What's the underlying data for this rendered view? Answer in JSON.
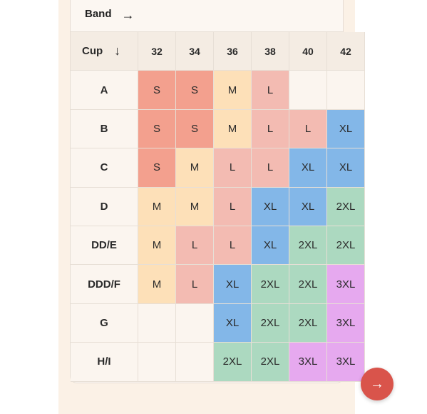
{
  "band": {
    "label": "Band",
    "arrow_icon": "arrow-right-icon"
  },
  "cup": {
    "label": "Cup",
    "arrow_icon": "arrow-down-icon"
  },
  "bands": [
    "32",
    "34",
    "36",
    "38",
    "40",
    "42"
  ],
  "rows": [
    {
      "cup": "A",
      "sizes": [
        "S",
        "S",
        "M",
        "L",
        "",
        ""
      ]
    },
    {
      "cup": "B",
      "sizes": [
        "S",
        "S",
        "M",
        "L",
        "L",
        "XL"
      ]
    },
    {
      "cup": "C",
      "sizes": [
        "S",
        "M",
        "L",
        "L",
        "XL",
        "XL"
      ]
    },
    {
      "cup": "D",
      "sizes": [
        "M",
        "M",
        "L",
        "XL",
        "XL",
        "2XL"
      ]
    },
    {
      "cup": "DD/E",
      "sizes": [
        "M",
        "L",
        "L",
        "XL",
        "2XL",
        "2XL"
      ]
    },
    {
      "cup": "DDD/F",
      "sizes": [
        "M",
        "L",
        "XL",
        "2XL",
        "2XL",
        "3XL"
      ]
    },
    {
      "cup": "G",
      "sizes": [
        "",
        "",
        "XL",
        "2XL",
        "2XL",
        "3XL"
      ]
    },
    {
      "cup": "H/I",
      "sizes": [
        "",
        "",
        "2XL",
        "2XL",
        "3XL",
        "3XL"
      ]
    }
  ],
  "size_colors": {
    "S": "#f3a08e",
    "M": "#fde0b8",
    "L": "#f3bbb2",
    "XL": "#83b7e8",
    "2XL": "#acd9c0",
    "3XL": "#e6a9ef"
  },
  "next_button": {
    "icon": "arrow-right-icon",
    "color": "#d9544b"
  }
}
